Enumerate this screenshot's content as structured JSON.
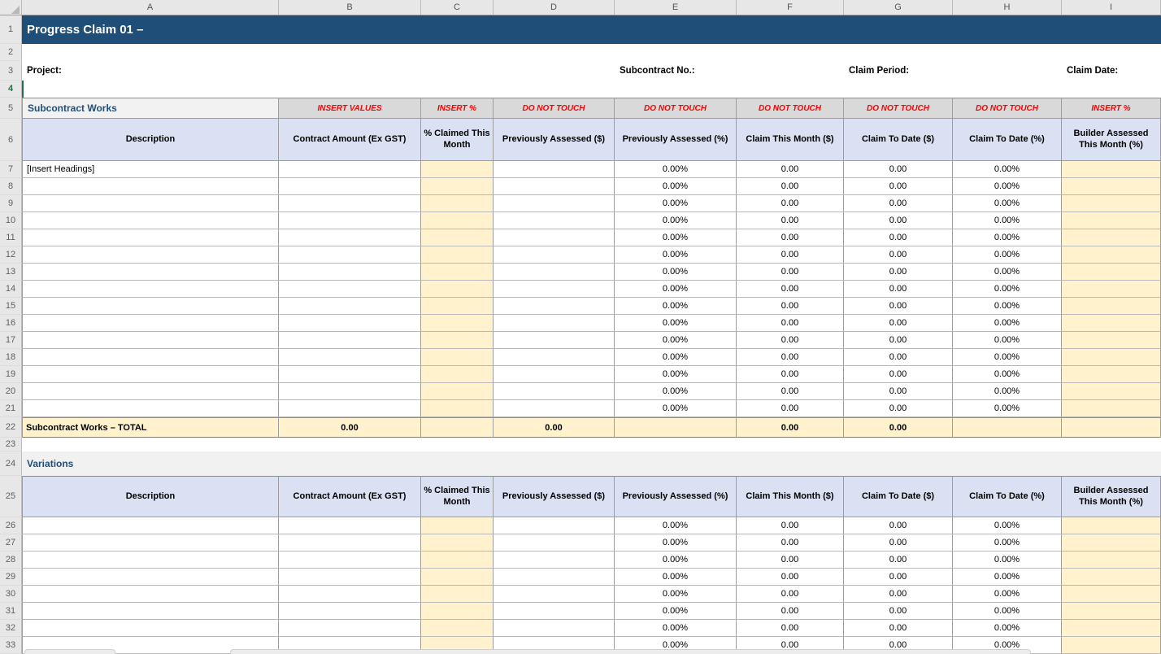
{
  "window": {
    "column_letters": [
      "A",
      "B",
      "C",
      "D",
      "E",
      "F",
      "G",
      "H",
      "I"
    ],
    "row_numbers": [
      "1",
      "2",
      "3",
      "4",
      "5",
      "6",
      "7",
      "8",
      "9",
      "10",
      "11",
      "12",
      "13",
      "14",
      "15",
      "16",
      "17",
      "18",
      "19",
      "20",
      "21",
      "22",
      "23",
      "24",
      "25",
      "26",
      "27",
      "28",
      "29",
      "30",
      "31",
      "32",
      "33"
    ],
    "selected_cell": "A4"
  },
  "title_banner": "Progress Claim 01 –",
  "info_labels": {
    "project": "Project:",
    "subcontract_no": "Subcontract No.:",
    "claim_period": "Claim Period:",
    "claim_date": "Claim Date:"
  },
  "column_headers": [
    "Description",
    "Contract Amount (Ex GST)",
    "% Claimed This Month",
    "Previously Assessed ($)",
    "Previously Assessed (%)",
    "Claim This Month ($)",
    "Claim To Date ($)",
    "Claim To Date (%)",
    "Builder Assessed This Month (%)"
  ],
  "subcontract_works": {
    "section_label": "Subcontract Works",
    "annotations": [
      "INSERT VALUES",
      "INSERT %",
      "DO NOT TOUCH",
      "DO NOT TOUCH",
      "DO NOT TOUCH",
      "DO NOT TOUCH",
      "DO NOT TOUCH",
      "INSERT %"
    ],
    "rows": [
      [
        "[Insert Headings]",
        "",
        "",
        "",
        "0.00%",
        "0.00",
        "0.00",
        "0.00%",
        ""
      ],
      [
        "",
        "",
        "",
        "",
        "0.00%",
        "0.00",
        "0.00",
        "0.00%",
        ""
      ],
      [
        "",
        "",
        "",
        "",
        "0.00%",
        "0.00",
        "0.00",
        "0.00%",
        ""
      ],
      [
        "",
        "",
        "",
        "",
        "0.00%",
        "0.00",
        "0.00",
        "0.00%",
        ""
      ],
      [
        "",
        "",
        "",
        "",
        "0.00%",
        "0.00",
        "0.00",
        "0.00%",
        ""
      ],
      [
        "",
        "",
        "",
        "",
        "0.00%",
        "0.00",
        "0.00",
        "0.00%",
        ""
      ],
      [
        "",
        "",
        "",
        "",
        "0.00%",
        "0.00",
        "0.00",
        "0.00%",
        ""
      ],
      [
        "",
        "",
        "",
        "",
        "0.00%",
        "0.00",
        "0.00",
        "0.00%",
        ""
      ],
      [
        "",
        "",
        "",
        "",
        "0.00%",
        "0.00",
        "0.00",
        "0.00%",
        ""
      ],
      [
        "",
        "",
        "",
        "",
        "0.00%",
        "0.00",
        "0.00",
        "0.00%",
        ""
      ],
      [
        "",
        "",
        "",
        "",
        "0.00%",
        "0.00",
        "0.00",
        "0.00%",
        ""
      ],
      [
        "",
        "",
        "",
        "",
        "0.00%",
        "0.00",
        "0.00",
        "0.00%",
        ""
      ],
      [
        "",
        "",
        "",
        "",
        "0.00%",
        "0.00",
        "0.00",
        "0.00%",
        ""
      ],
      [
        "",
        "",
        "",
        "",
        "0.00%",
        "0.00",
        "0.00",
        "0.00%",
        ""
      ],
      [
        "",
        "",
        "",
        "",
        "0.00%",
        "0.00",
        "0.00",
        "0.00%",
        ""
      ]
    ],
    "total_row": {
      "label": "Subcontract Works – TOTAL",
      "values": [
        "0.00",
        "",
        "0.00",
        "",
        "0.00",
        "0.00",
        "",
        ""
      ]
    }
  },
  "variations": {
    "section_label": "Variations",
    "rows": [
      [
        "",
        "",
        "",
        "",
        "0.00%",
        "0.00",
        "0.00",
        "0.00%",
        ""
      ],
      [
        "",
        "",
        "",
        "",
        "0.00%",
        "0.00",
        "0.00",
        "0.00%",
        ""
      ],
      [
        "",
        "",
        "",
        "",
        "0.00%",
        "0.00",
        "0.00",
        "0.00%",
        ""
      ],
      [
        "",
        "",
        "",
        "",
        "0.00%",
        "0.00",
        "0.00",
        "0.00%",
        ""
      ],
      [
        "",
        "",
        "",
        "",
        "0.00%",
        "0.00",
        "0.00",
        "0.00%",
        ""
      ],
      [
        "",
        "",
        "",
        "",
        "0.00%",
        "0.00",
        "0.00",
        "0.00%",
        ""
      ],
      [
        "",
        "",
        "",
        "",
        "0.00%",
        "0.00",
        "0.00",
        "0.00%",
        ""
      ],
      [
        "",
        "",
        "",
        "",
        "0.00%",
        "0.00",
        "0.00",
        "0.00%",
        ""
      ]
    ]
  },
  "colors": {
    "banner_fill": "#1F4E79",
    "section_title_text": "#1F4E79",
    "warning_text": "#FF0000",
    "table_header_fill": "#D9E1F2",
    "input_cell_fill": "#FFF2CC",
    "annotation_fill": "#D9D9D9",
    "total_row_fill": "#FFF2CC",
    "selection_green": "#217346"
  }
}
